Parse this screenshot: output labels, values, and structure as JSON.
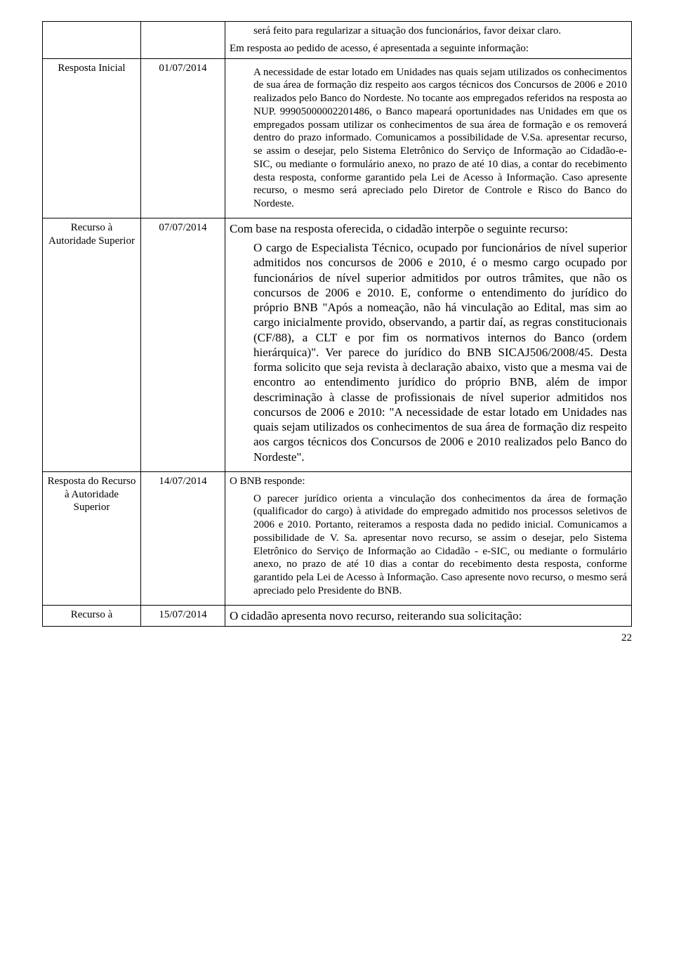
{
  "row0": {
    "top_text": "será feito para regularizar a situação dos funcionários, favor deixar claro.",
    "intro": "Em resposta ao pedido de acesso, é apresentada a seguinte informação:"
  },
  "row1": {
    "label": "Resposta Inicial",
    "date": "01/07/2014",
    "body": "A necessidade de estar lotado em Unidades nas quais sejam utilizados os conhecimentos de sua área de formação diz respeito aos cargos técnicos dos Concursos de 2006 e 2010 realizados pelo Banco do Nordeste. No tocante aos empregados referidos na resposta ao NUP. 99905000002201486, o Banco mapeará oportunidades nas Unidades em que os empregados possam utilizar os conhecimentos de sua área de formação e os removerá dentro do prazo informado. Comunicamos a possibilidade de V.Sa. apresentar recurso, se assim o desejar, pelo Sistema Eletrônico do Serviço de Informação ao Cidadão-e-SIC, ou mediante o formulário anexo, no prazo de até 10 dias, a contar do recebimento desta resposta, conforme garantido pela Lei de Acesso à Informação. Caso apresente recurso, o mesmo será apreciado pelo Diretor de Controle e Risco do Banco do Nordeste."
  },
  "row2": {
    "label": "Recurso à Autoridade Superior",
    "date": "07/07/2014",
    "intro": "Com base na resposta oferecida, o cidadão interpõe o seguinte recurso:",
    "body": "O cargo de Especialista Técnico, ocupado por funcionários de nível superior admitidos nos concursos de 2006 e 2010, é o mesmo cargo ocupado por funcionários de nível superior admitidos por outros trâmites, que não os concursos de 2006 e 2010. E, conforme o entendimento do jurídico do próprio BNB \"Após a nomeação, não há vinculação ao Edital, mas sim ao cargo inicialmente provido, observando, a partir daí, as regras constitucionais (CF/88), a CLT e por fim os normativos internos do Banco (ordem hierárquica)\". Ver parece do jurídico do BNB SICAJ506/2008/45. Desta forma solicito que seja revista à declaração abaixo, visto que a mesma vai de encontro ao entendimento jurídico do próprio BNB, além de impor descriminação à classe de profissionais de nível superior admitidos nos concursos de 2006 e 2010: \"A necessidade de estar lotado em Unidades nas quais sejam utilizados os conhecimentos de sua área de formação diz respeito aos cargos técnicos dos Concursos de 2006 e 2010 realizados pelo Banco do Nordeste\"."
  },
  "row3": {
    "label": "Resposta do Recurso à Autoridade Superior",
    "date": "14/07/2014",
    "intro": "O BNB responde:",
    "body": "O parecer jurídico orienta a vinculação dos conhecimentos da área de formação (qualificador do cargo) à atividade do empregado admitido nos processos seletivos de 2006 e 2010. Portanto, reiteramos a resposta dada no pedido inicial. Comunicamos a possibilidade de V. Sa. apresentar novo recurso, se assim o desejar, pelo Sistema Eletrônico do Serviço de Informação ao Cidadão - e-SIC, ou mediante o formulário anexo, no prazo de até 10 dias a contar do recebimento desta resposta, conforme garantido pela Lei de Acesso à Informação. Caso apresente novo recurso, o mesmo será apreciado pelo Presidente do BNB."
  },
  "row4": {
    "label": "Recurso à",
    "date": "15/07/2014",
    "body": "O cidadão apresenta novo recurso, reiterando sua solicitação:"
  },
  "page_number": "22"
}
